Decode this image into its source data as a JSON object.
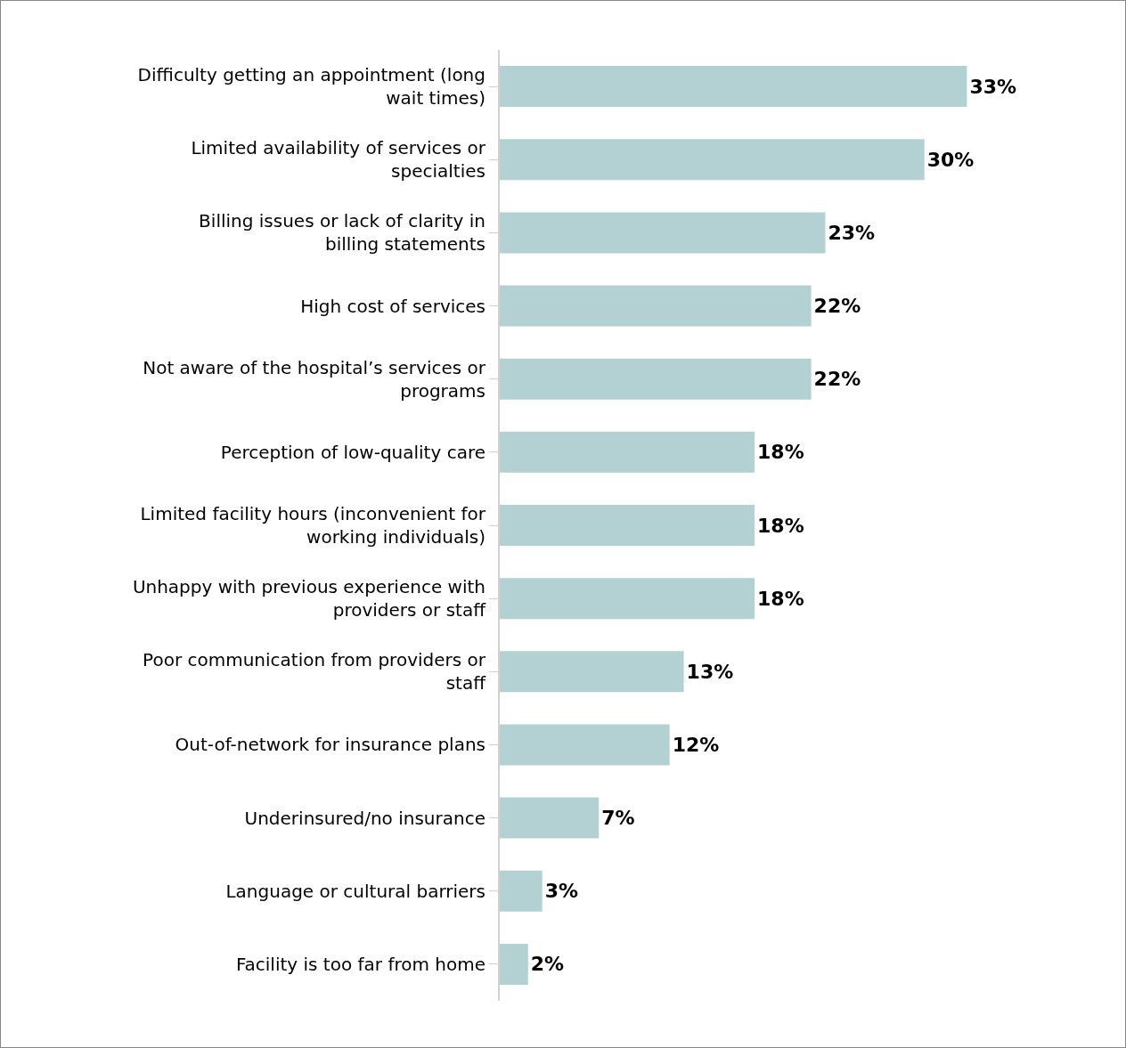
{
  "chart_data": {
    "type": "bar",
    "orientation": "horizontal",
    "categories": [
      "Difficulty getting an appointment (long wait times)",
      "Limited availability of services or specialties",
      "Billing issues or lack of clarity in billing statements",
      "High cost of services",
      "Not aware of the hospital’s services or programs",
      "Perception of low-quality care",
      "Limited facility hours (inconvenient for working individuals)",
      "Unhappy with previous experience with providers or staff",
      "Poor communication from providers or staff",
      "Out-of-network for insurance plans",
      "Underinsured/no insurance",
      "Language or cultural barriers",
      "Facility is too far from home"
    ],
    "values": [
      33,
      30,
      23,
      22,
      22,
      18,
      18,
      18,
      13,
      12,
      7,
      3,
      2
    ],
    "value_labels": [
      "33%",
      "30%",
      "23%",
      "22%",
      "22%",
      "18%",
      "18%",
      "18%",
      "13%",
      "12%",
      "7%",
      "3%",
      "2%"
    ],
    "color": "#b3d0d3",
    "tick_labels": "y"
  }
}
